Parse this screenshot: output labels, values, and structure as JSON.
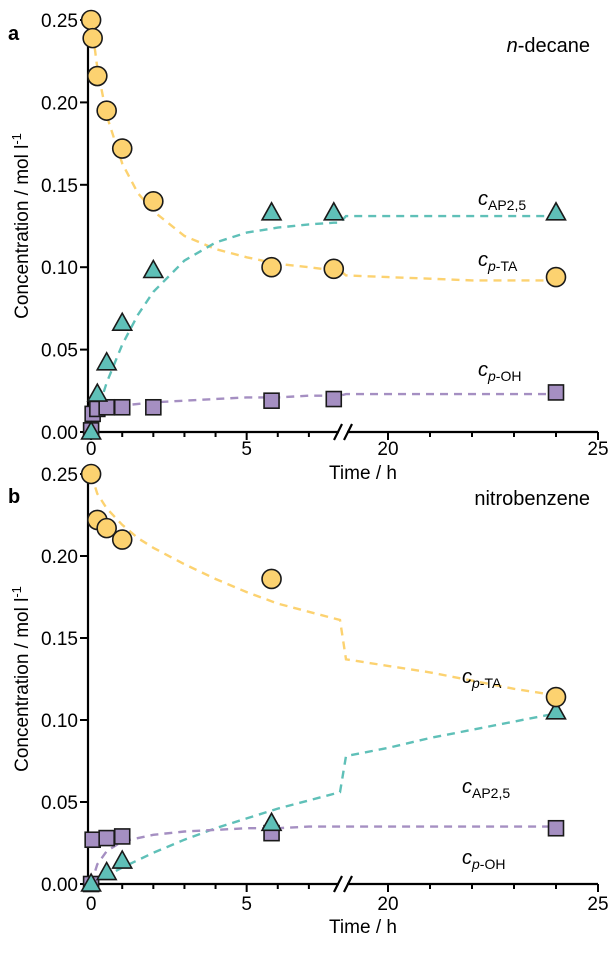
{
  "chart_data": [
    {
      "type": "scatter",
      "panel": "a",
      "annotation": "n-decane",
      "ylabel": "Concentration / mol l-1",
      "xlabel": "Time / h",
      "ylim": [
        0,
        0.25
      ],
      "yticks": [
        "0.00",
        "0.05",
        "0.10",
        "0.15",
        "0.20",
        "0.25"
      ],
      "xticks": [
        "0",
        "5",
        "20",
        "25"
      ],
      "x_break": [
        8,
        19
      ],
      "colors": {
        "p_TA": "#fcd270",
        "AP25": "#5fc0b8",
        "p_OH": "#a58fc2"
      },
      "series": [
        {
          "name": "c_p-TA",
          "label_main": "c",
          "label_sub": "p-TA",
          "marker": "circle",
          "x": [
            0,
            0.05,
            0.2,
            0.5,
            1,
            2,
            5.8,
            7.8,
            24
          ],
          "y": [
            0.25,
            0.239,
            0.216,
            0.195,
            0.172,
            0.14,
            0.1,
            0.099,
            0.094
          ],
          "fit_x": [
            0,
            0.2,
            0.5,
            1,
            1.5,
            2,
            3,
            4,
            5,
            6,
            7,
            7.8,
            8,
            19,
            20,
            21,
            22,
            23,
            24
          ],
          "fit_y": [
            0.25,
            0.221,
            0.192,
            0.163,
            0.145,
            0.134,
            0.119,
            0.111,
            0.106,
            0.102,
            0.1,
            0.098,
            0.098,
            0.095,
            0.094,
            0.093,
            0.092,
            0.092,
            0.092
          ]
        },
        {
          "name": "c_AP2,5",
          "label_main": "c",
          "label_sub": "AP2,5",
          "marker": "triangle",
          "x": [
            0,
            0.2,
            0.5,
            1,
            2,
            5.8,
            7.8,
            24
          ],
          "y": [
            0.0,
            0.023,
            0.042,
            0.066,
            0.098,
            0.133,
            0.133,
            0.133
          ],
          "fit_x": [
            0,
            0.2,
            0.5,
            1,
            1.5,
            2,
            3,
            4,
            5,
            6,
            7,
            7.8,
            8,
            19,
            20,
            21,
            22,
            23,
            24
          ],
          "fit_y": [
            0.0,
            0.012,
            0.03,
            0.053,
            0.071,
            0.085,
            0.104,
            0.115,
            0.121,
            0.124,
            0.126,
            0.127,
            0.127,
            0.131,
            0.131,
            0.131,
            0.131,
            0.131,
            0.131
          ]
        },
        {
          "name": "c_p-OH",
          "label_main": "c",
          "label_sub": "p-OH",
          "marker": "square",
          "x": [
            0,
            0.05,
            0.2,
            0.5,
            1,
            2,
            5.8,
            7.8,
            24
          ],
          "y": [
            0.001,
            0.011,
            0.014,
            0.015,
            0.015,
            0.015,
            0.019,
            0.02,
            0.024
          ],
          "fit_x": [
            0,
            0.2,
            0.5,
            1,
            2,
            3,
            4,
            5,
            6,
            7,
            7.8,
            8,
            19,
            20,
            22,
            24
          ],
          "fit_y": [
            0.0,
            0.011,
            0.014,
            0.016,
            0.018,
            0.019,
            0.02,
            0.021,
            0.021,
            0.022,
            0.022,
            0.022,
            0.023,
            0.023,
            0.023,
            0.023
          ]
        }
      ]
    },
    {
      "type": "scatter",
      "panel": "b",
      "annotation": "nitrobenzene",
      "ylabel": "Concentration / mol l-1",
      "xlabel": "Time / h",
      "ylim": [
        0,
        0.25
      ],
      "yticks": [
        "0.00",
        "0.05",
        "0.10",
        "0.15",
        "0.20",
        "0.25"
      ],
      "xticks": [
        "0",
        "5",
        "20",
        "25"
      ],
      "x_break": [
        8,
        19
      ],
      "colors": {
        "p_TA": "#fcd270",
        "AP25": "#5fc0b8",
        "p_OH": "#a58fc2"
      },
      "series": [
        {
          "name": "c_p-TA",
          "label_main": "c",
          "label_sub": "p-TA",
          "marker": "circle",
          "x": [
            0,
            0.2,
            0.5,
            1,
            5.8,
            24
          ],
          "y": [
            0.25,
            0.222,
            0.217,
            0.21,
            0.186,
            0.114
          ],
          "fit_x": [
            0,
            0.2,
            0.5,
            1,
            1.5,
            2,
            3,
            4,
            5,
            6,
            7,
            8,
            19,
            20,
            21,
            22,
            23,
            24
          ],
          "fit_y": [
            0.25,
            0.238,
            0.229,
            0.219,
            0.211,
            0.205,
            0.195,
            0.186,
            0.178,
            0.171,
            0.166,
            0.161,
            0.137,
            0.133,
            0.129,
            0.124,
            0.119,
            0.115
          ]
        },
        {
          "name": "c_AP2,5",
          "label_main": "c",
          "label_sub": "AP2,5",
          "marker": "triangle",
          "x": [
            0,
            0.5,
            1,
            5.8,
            24
          ],
          "y": [
            0.0,
            0.007,
            0.014,
            0.037,
            0.105
          ],
          "fit_x": [
            0,
            0.5,
            1,
            2,
            3,
            4,
            5,
            6,
            7,
            8,
            19,
            20,
            21,
            22,
            23,
            24
          ],
          "fit_y": [
            0.0,
            0.005,
            0.01,
            0.019,
            0.027,
            0.034,
            0.04,
            0.046,
            0.051,
            0.056,
            0.078,
            0.083,
            0.089,
            0.094,
            0.099,
            0.104
          ]
        },
        {
          "name": "c_p-OH",
          "label_main": "c",
          "label_sub": "p-OH",
          "marker": "square",
          "x": [
            0,
            0.05,
            0.5,
            1,
            5.8,
            24
          ],
          "y": [
            0.0,
            0.027,
            0.028,
            0.029,
            0.031,
            0.034
          ],
          "fit_x": [
            0,
            0.2,
            0.5,
            1,
            2,
            3,
            4,
            5,
            6,
            7,
            8,
            19,
            20,
            22,
            24
          ],
          "fit_y": [
            0.0,
            0.012,
            0.02,
            0.026,
            0.03,
            0.032,
            0.033,
            0.034,
            0.034,
            0.035,
            0.035,
            0.035,
            0.035,
            0.035,
            0.035
          ]
        }
      ]
    }
  ]
}
